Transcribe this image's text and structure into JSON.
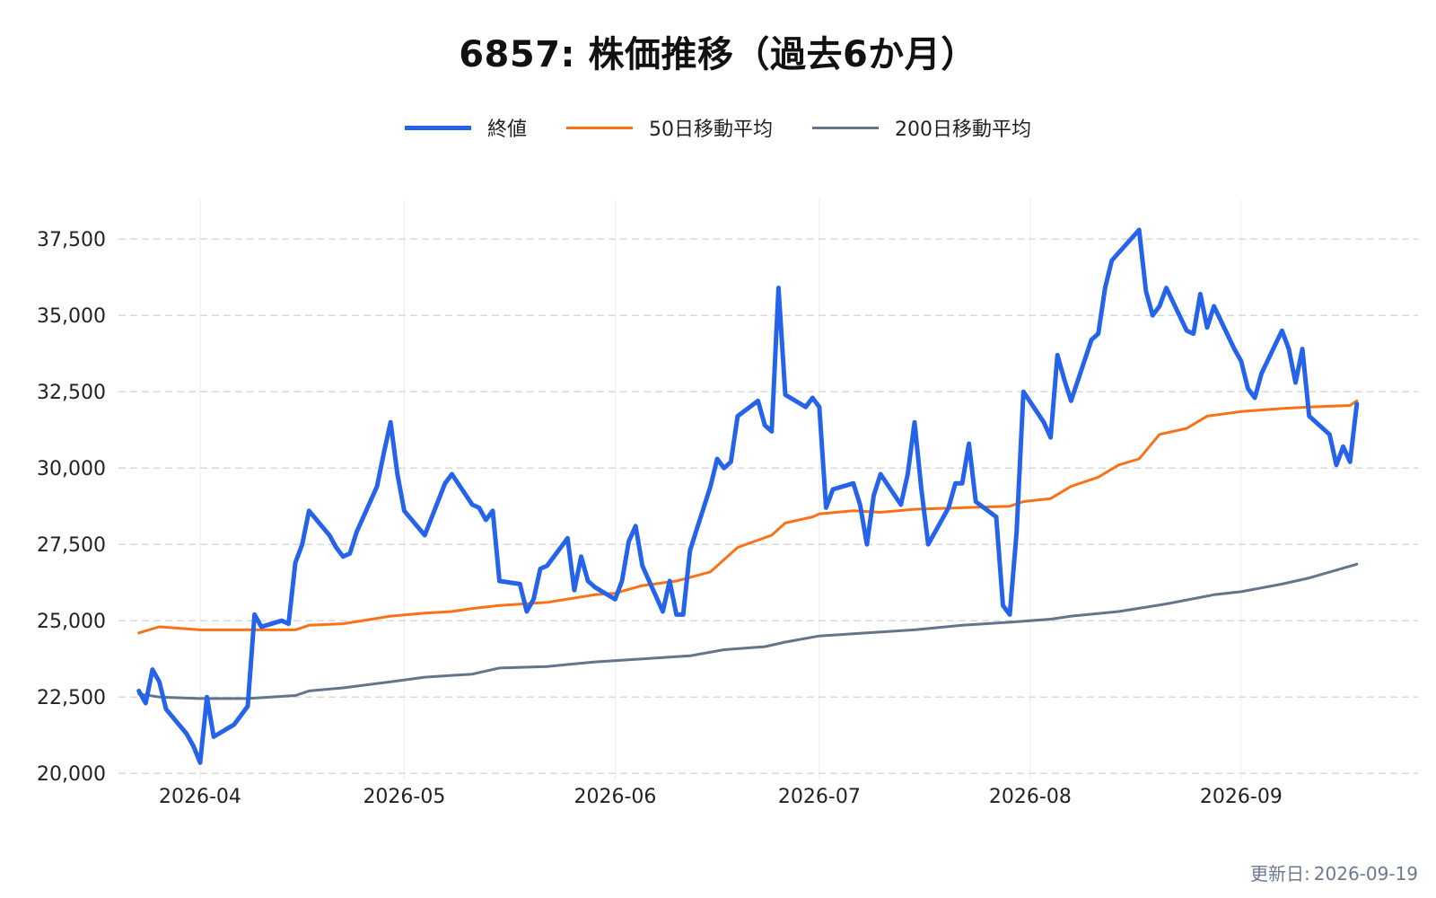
{
  "title": "6857: 株価推移（過去6か月）",
  "updated_label": "更新日:",
  "updated_value": "2026-09-19",
  "colors": {
    "close": "#2563eb",
    "ma50": "#f97316",
    "ma200": "#64748b",
    "grid": "#d9d9d9"
  },
  "chart_data": {
    "type": "line",
    "title": "6857: 株価推移（過去6か月）",
    "xlabel": "",
    "ylabel": "",
    "x_range": [
      "2026-03-20",
      "2026-09-27"
    ],
    "ylim": [
      19800,
      38800
    ],
    "y_ticks": [
      20000,
      22500,
      25000,
      27500,
      30000,
      32500,
      35000,
      37500
    ],
    "y_tick_labels": [
      "20,000",
      "22,500",
      "25,000",
      "27,500",
      "30,000",
      "32,500",
      "35,000",
      "37,500"
    ],
    "x_ticks": [
      "2026-04-01",
      "2026-05-01",
      "2026-06-01",
      "2026-07-01",
      "2026-08-01",
      "2026-09-01"
    ],
    "x_tick_labels": [
      "2026-04",
      "2026-05",
      "2026-06",
      "2026-07",
      "2026-08",
      "2026-09"
    ],
    "grid": true,
    "legend_position": "top-center",
    "series": [
      {
        "name": "終値",
        "color": "#2563eb",
        "points": [
          [
            "2026-03-23",
            22700
          ],
          [
            "2026-03-24",
            22300
          ],
          [
            "2026-03-25",
            23400
          ],
          [
            "2026-03-26",
            23000
          ],
          [
            "2026-03-27",
            22100
          ],
          [
            "2026-03-30",
            21300
          ],
          [
            "2026-03-31",
            20900
          ],
          [
            "2026-04-01",
            20350
          ],
          [
            "2026-04-02",
            22500
          ],
          [
            "2026-04-03",
            21200
          ],
          [
            "2026-04-06",
            21600
          ],
          [
            "2026-04-07",
            21900
          ],
          [
            "2026-04-08",
            22200
          ],
          [
            "2026-04-09",
            25200
          ],
          [
            "2026-04-10",
            24800
          ],
          [
            "2026-04-13",
            25000
          ],
          [
            "2026-04-14",
            24900
          ],
          [
            "2026-04-15",
            26900
          ],
          [
            "2026-04-16",
            27500
          ],
          [
            "2026-04-17",
            28600
          ],
          [
            "2026-04-20",
            27800
          ],
          [
            "2026-04-21",
            27400
          ],
          [
            "2026-04-22",
            27100
          ],
          [
            "2026-04-23",
            27200
          ],
          [
            "2026-04-24",
            27900
          ],
          [
            "2026-04-27",
            29400
          ],
          [
            "2026-04-28",
            30500
          ],
          [
            "2026-04-29",
            31500
          ],
          [
            "2026-04-30",
            29800
          ],
          [
            "2026-05-01",
            28600
          ],
          [
            "2026-05-04",
            27800
          ],
          [
            "2026-05-07",
            29500
          ],
          [
            "2026-05-08",
            29800
          ],
          [
            "2026-05-11",
            28800
          ],
          [
            "2026-05-12",
            28700
          ],
          [
            "2026-05-13",
            28300
          ],
          [
            "2026-05-14",
            28600
          ],
          [
            "2026-05-15",
            26300
          ],
          [
            "2026-05-18",
            26200
          ],
          [
            "2026-05-19",
            25300
          ],
          [
            "2026-05-20",
            25700
          ],
          [
            "2026-05-21",
            26700
          ],
          [
            "2026-05-22",
            26800
          ],
          [
            "2026-05-25",
            27700
          ],
          [
            "2026-05-26",
            26000
          ],
          [
            "2026-05-27",
            27100
          ],
          [
            "2026-05-28",
            26300
          ],
          [
            "2026-05-29",
            26100
          ],
          [
            "2026-06-01",
            25700
          ],
          [
            "2026-06-02",
            26300
          ],
          [
            "2026-06-03",
            27600
          ],
          [
            "2026-06-04",
            28100
          ],
          [
            "2026-06-05",
            26800
          ],
          [
            "2026-06-08",
            25300
          ],
          [
            "2026-06-09",
            26300
          ],
          [
            "2026-06-10",
            25200
          ],
          [
            "2026-06-11",
            25200
          ],
          [
            "2026-06-12",
            27300
          ],
          [
            "2026-06-15",
            29400
          ],
          [
            "2026-06-16",
            30300
          ],
          [
            "2026-06-17",
            30000
          ],
          [
            "2026-06-18",
            30200
          ],
          [
            "2026-06-19",
            31700
          ],
          [
            "2026-06-22",
            32200
          ],
          [
            "2026-06-23",
            31400
          ],
          [
            "2026-06-24",
            31200
          ],
          [
            "2026-06-25",
            35900
          ],
          [
            "2026-06-26",
            32400
          ],
          [
            "2026-06-29",
            32000
          ],
          [
            "2026-06-30",
            32300
          ],
          [
            "2026-07-01",
            32000
          ],
          [
            "2026-07-02",
            28700
          ],
          [
            "2026-07-03",
            29300
          ],
          [
            "2026-07-06",
            29500
          ],
          [
            "2026-07-07",
            28800
          ],
          [
            "2026-07-08",
            27500
          ],
          [
            "2026-07-09",
            29100
          ],
          [
            "2026-07-10",
            29800
          ],
          [
            "2026-07-13",
            28800
          ],
          [
            "2026-07-14",
            29800
          ],
          [
            "2026-07-15",
            31500
          ],
          [
            "2026-07-16",
            29300
          ],
          [
            "2026-07-17",
            27500
          ],
          [
            "2026-07-20",
            28700
          ],
          [
            "2026-07-21",
            29500
          ],
          [
            "2026-07-22",
            29500
          ],
          [
            "2026-07-23",
            30800
          ],
          [
            "2026-07-24",
            28900
          ],
          [
            "2026-07-27",
            28400
          ],
          [
            "2026-07-28",
            25500
          ],
          [
            "2026-07-29",
            25200
          ],
          [
            "2026-07-30",
            27900
          ],
          [
            "2026-07-31",
            32500
          ],
          [
            "2026-08-03",
            31500
          ],
          [
            "2026-08-04",
            31000
          ],
          [
            "2026-08-05",
            33700
          ],
          [
            "2026-08-06",
            32900
          ],
          [
            "2026-08-07",
            32200
          ],
          [
            "2026-08-10",
            34200
          ],
          [
            "2026-08-11",
            34400
          ],
          [
            "2026-08-12",
            35900
          ],
          [
            "2026-08-13",
            36800
          ],
          [
            "2026-08-17",
            37800
          ],
          [
            "2026-08-18",
            35800
          ],
          [
            "2026-08-19",
            35000
          ],
          [
            "2026-08-20",
            35300
          ],
          [
            "2026-08-21",
            35900
          ],
          [
            "2026-08-24",
            34500
          ],
          [
            "2026-08-25",
            34400
          ],
          [
            "2026-08-26",
            35700
          ],
          [
            "2026-08-27",
            34600
          ],
          [
            "2026-08-28",
            35300
          ],
          [
            "2026-08-31",
            33900
          ],
          [
            "2026-09-01",
            33500
          ],
          [
            "2026-09-02",
            32600
          ],
          [
            "2026-09-03",
            32300
          ],
          [
            "2026-09-04",
            33100
          ],
          [
            "2026-09-07",
            34500
          ],
          [
            "2026-09-08",
            33900
          ],
          [
            "2026-09-09",
            32800
          ],
          [
            "2026-09-10",
            33900
          ],
          [
            "2026-09-11",
            31700
          ],
          [
            "2026-09-14",
            31100
          ],
          [
            "2026-09-15",
            30100
          ],
          [
            "2026-09-16",
            30700
          ],
          [
            "2026-09-17",
            30200
          ],
          [
            "2026-09-18",
            32100
          ]
        ]
      },
      {
        "name": "50日移動平均",
        "color": "#f97316",
        "points": [
          [
            "2026-03-23",
            24600
          ],
          [
            "2026-03-26",
            24800
          ],
          [
            "2026-04-01",
            24700
          ],
          [
            "2026-04-08",
            24700
          ],
          [
            "2026-04-15",
            24700
          ],
          [
            "2026-04-17",
            24850
          ],
          [
            "2026-04-22",
            24900
          ],
          [
            "2026-04-29",
            25150
          ],
          [
            "2026-05-04",
            25250
          ],
          [
            "2026-05-08",
            25300
          ],
          [
            "2026-05-11",
            25400
          ],
          [
            "2026-05-15",
            25500
          ],
          [
            "2026-05-22",
            25600
          ],
          [
            "2026-05-29",
            25850
          ],
          [
            "2026-06-01",
            25900
          ],
          [
            "2026-06-05",
            26150
          ],
          [
            "2026-06-10",
            26300
          ],
          [
            "2026-06-15",
            26600
          ],
          [
            "2026-06-19",
            27400
          ],
          [
            "2026-06-24",
            27800
          ],
          [
            "2026-06-26",
            28200
          ],
          [
            "2026-06-30",
            28400
          ],
          [
            "2026-07-01",
            28500
          ],
          [
            "2026-07-06",
            28600
          ],
          [
            "2026-07-10",
            28550
          ],
          [
            "2026-07-15",
            28650
          ],
          [
            "2026-07-22",
            28700
          ],
          [
            "2026-07-29",
            28750
          ],
          [
            "2026-07-31",
            28900
          ],
          [
            "2026-08-04",
            29000
          ],
          [
            "2026-08-07",
            29400
          ],
          [
            "2026-08-11",
            29700
          ],
          [
            "2026-08-14",
            30100
          ],
          [
            "2026-08-17",
            30300
          ],
          [
            "2026-08-20",
            31100
          ],
          [
            "2026-08-24",
            31300
          ],
          [
            "2026-08-27",
            31700
          ],
          [
            "2026-09-01",
            31850
          ],
          [
            "2026-09-04",
            31900
          ],
          [
            "2026-09-07",
            31950
          ],
          [
            "2026-09-11",
            32000
          ],
          [
            "2026-09-17",
            32050
          ],
          [
            "2026-09-18",
            32200
          ]
        ]
      },
      {
        "name": "200日移動平均",
        "color": "#64748b",
        "points": [
          [
            "2026-03-23",
            22600
          ],
          [
            "2026-03-26",
            22500
          ],
          [
            "2026-04-01",
            22450
          ],
          [
            "2026-04-08",
            22450
          ],
          [
            "2026-04-15",
            22550
          ],
          [
            "2026-04-17",
            22700
          ],
          [
            "2026-04-22",
            22800
          ],
          [
            "2026-04-29",
            23000
          ],
          [
            "2026-05-04",
            23150
          ],
          [
            "2026-05-11",
            23250
          ],
          [
            "2026-05-15",
            23450
          ],
          [
            "2026-05-22",
            23500
          ],
          [
            "2026-05-29",
            23650
          ],
          [
            "2026-06-05",
            23750
          ],
          [
            "2026-06-12",
            23850
          ],
          [
            "2026-06-17",
            24050
          ],
          [
            "2026-06-23",
            24150
          ],
          [
            "2026-06-26",
            24300
          ],
          [
            "2026-07-01",
            24500
          ],
          [
            "2026-07-08",
            24600
          ],
          [
            "2026-07-15",
            24700
          ],
          [
            "2026-07-22",
            24850
          ],
          [
            "2026-07-29",
            24950
          ],
          [
            "2026-08-04",
            25050
          ],
          [
            "2026-08-07",
            25150
          ],
          [
            "2026-08-14",
            25300
          ],
          [
            "2026-08-21",
            25550
          ],
          [
            "2026-08-28",
            25850
          ],
          [
            "2026-09-01",
            25950
          ],
          [
            "2026-09-07",
            26200
          ],
          [
            "2026-09-11",
            26400
          ],
          [
            "2026-09-18",
            26850
          ]
        ]
      }
    ]
  }
}
